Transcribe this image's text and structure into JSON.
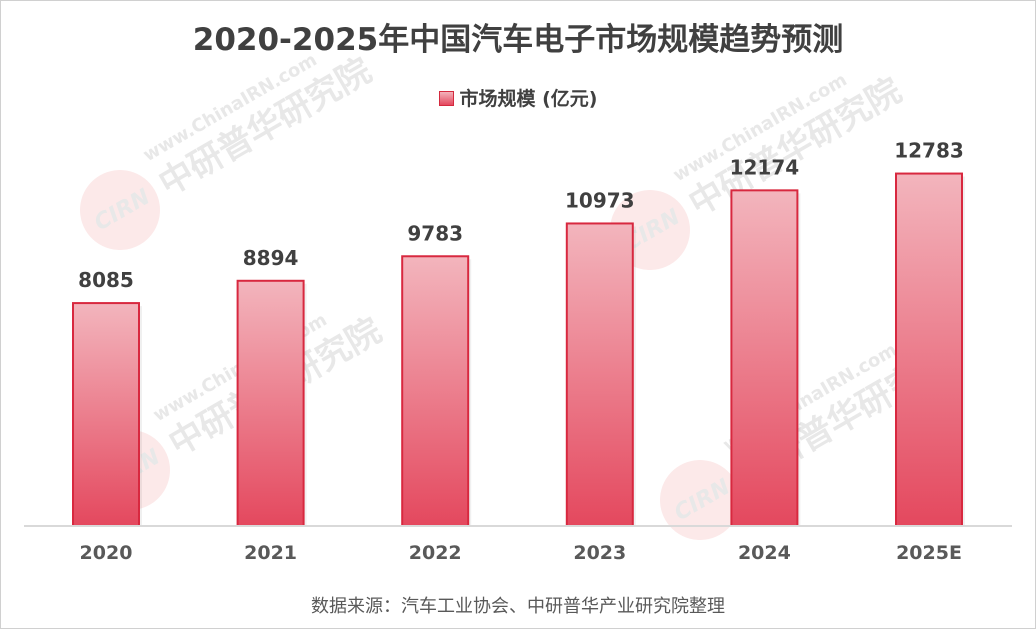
{
  "chart_data": {
    "type": "bar",
    "title": "2020-2025年中国汽车电子市场规模趋势预测",
    "categories": [
      "2020",
      "2021",
      "2022",
      "2023",
      "2024",
      "2025E"
    ],
    "series": [
      {
        "name": "市场规模 (亿元)",
        "values": [
          8085,
          8894,
          9783,
          10973,
          12174,
          12783
        ]
      }
    ],
    "xlabel": "",
    "ylabel": "",
    "ylim": [
      0,
      14000
    ],
    "grid": false,
    "legend_position": "top-center",
    "colors": {
      "bar_top": "#f3b5bd",
      "bar_bottom": "#e4485e",
      "bar_border": "#d8283f"
    }
  },
  "source": "数据来源：汽车工业协会、中研普华产业研究院整理",
  "watermark": {
    "cn": "中研普华研究院",
    "url": "www.ChinaIRN.com",
    "logo": "CIRN"
  }
}
